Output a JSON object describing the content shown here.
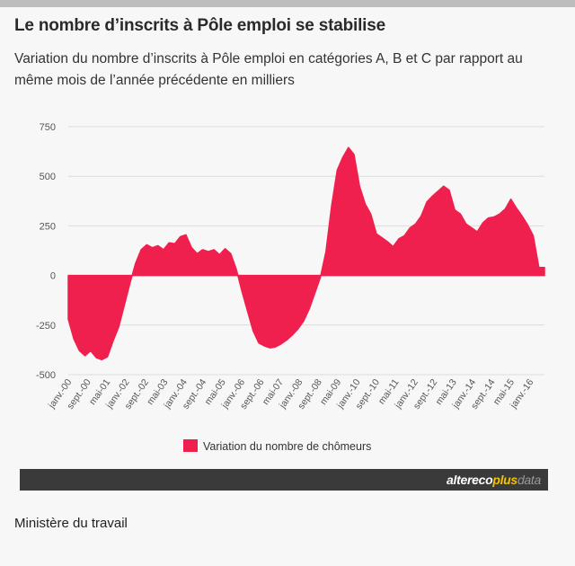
{
  "header": {
    "title": "Le nombre d’inscrits à Pôle emploi se stabilise",
    "subtitle": "Variation du nombre d’inscrits à Pôle emploi en catégories A, B et C par rapport au même mois de l’année précédente en milliers"
  },
  "brand": {
    "part1": "altereco",
    "part2": "plus",
    "part3": "data"
  },
  "source": "Ministère du travail",
  "colors": {
    "series": "#f0204e",
    "grid": "#dcdcdc",
    "axis_text": "#555555",
    "brandbar": "#3a3a3a",
    "accent": "#f2c200"
  },
  "chart_data": {
    "type": "area",
    "ylim": [
      -500,
      750
    ],
    "yticks": [
      -500,
      -250,
      0,
      250,
      500,
      750
    ],
    "xticklabels": [
      "janv.-00",
      "sept.-00",
      "mai-01",
      "janv.-02",
      "sept.-02",
      "mai-03",
      "janv.-04",
      "sept.-04",
      "mai-05",
      "janv.-06",
      "sept.-06",
      "mai-07",
      "janv.-08",
      "sept.-08",
      "mai-09",
      "janv.-10",
      "sept.-10",
      "mai-11",
      "janv.-12",
      "sept.-12",
      "mai-13",
      "janv.-14",
      "sept.-14",
      "mai-15",
      "janv.-16"
    ],
    "grid": true,
    "legend": {
      "position": "bottom",
      "label": "Variation du nombre de chômeurs"
    },
    "series": [
      {
        "name": "Variation du nombre de chômeurs",
        "values": [
          -220,
          -320,
          -380,
          -405,
          -380,
          -415,
          -425,
          -410,
          -330,
          -260,
          -150,
          -40,
          60,
          130,
          155,
          140,
          150,
          130,
          165,
          160,
          195,
          205,
          140,
          110,
          130,
          120,
          130,
          105,
          135,
          110,
          30,
          -80,
          -180,
          -280,
          -340,
          -355,
          -365,
          -360,
          -345,
          -325,
          -300,
          -270,
          -230,
          -170,
          -90,
          -10,
          120,
          350,
          530,
          595,
          645,
          610,
          450,
          360,
          310,
          210,
          190,
          170,
          145,
          185,
          200,
          240,
          260,
          300,
          370,
          400,
          425,
          450,
          430,
          330,
          310,
          260,
          240,
          220,
          265,
          290,
          295,
          310,
          335,
          385,
          340,
          300,
          255,
          200,
          40,
          40
        ]
      }
    ]
  }
}
